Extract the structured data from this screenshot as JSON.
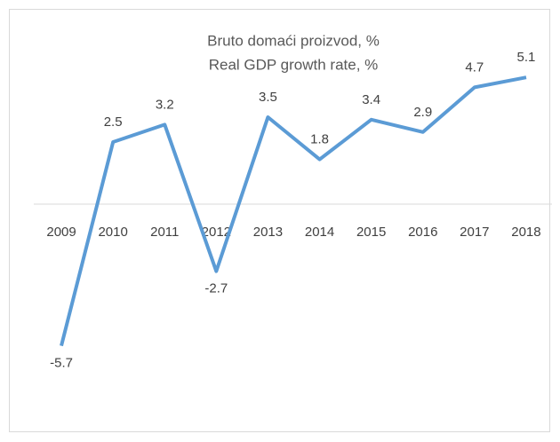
{
  "chart_data": {
    "type": "line",
    "title": "Bruto domaći proizvod, %",
    "subtitle": "Real GDP growth rate, %",
    "categories": [
      "2009",
      "2010",
      "2011",
      "2012",
      "2013",
      "2014",
      "2015",
      "2016",
      "2017",
      "2018"
    ],
    "series": [
      {
        "name": "Real GDP growth rate, %",
        "color": "#5b9bd5",
        "values": [
          -5.7,
          2.5,
          3.2,
          -2.7,
          3.5,
          1.8,
          3.4,
          2.9,
          4.7,
          5.1
        ]
      }
    ],
    "ylim": [
      -8,
      6
    ]
  }
}
